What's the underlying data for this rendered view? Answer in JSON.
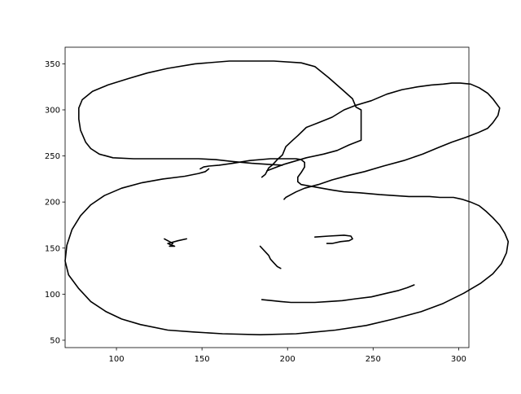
{
  "chart_data": {
    "type": "line",
    "title": "",
    "xlabel": "",
    "ylabel": "",
    "xlim": [
      70,
      306
    ],
    "ylim": [
      42,
      368
    ],
    "grid": false,
    "legend": "none",
    "line_color": "#000000",
    "x_ticks": [
      100,
      150,
      200,
      250,
      300
    ],
    "y_ticks": [
      50,
      100,
      150,
      200,
      250,
      300,
      350
    ],
    "strokes": [
      {
        "name": "left-ear",
        "points": [
          [
            197,
            240
          ],
          [
            188,
            241
          ],
          [
            179,
            242
          ],
          [
            168,
            244
          ],
          [
            158,
            246
          ],
          [
            148,
            247
          ],
          [
            140,
            247
          ],
          [
            127,
            247
          ],
          [
            110,
            247
          ],
          [
            98,
            248
          ],
          [
            90,
            252
          ],
          [
            85,
            258
          ],
          [
            82,
            265
          ],
          [
            79,
            278
          ],
          [
            78,
            290
          ],
          [
            78,
            302
          ],
          [
            80,
            311
          ],
          [
            86,
            320
          ],
          [
            95,
            327
          ],
          [
            107,
            334
          ],
          [
            118,
            340
          ],
          [
            130,
            345
          ],
          [
            146,
            350
          ],
          [
            166,
            353
          ],
          [
            192,
            353
          ],
          [
            208,
            351
          ],
          [
            216,
            347
          ],
          [
            224,
            335
          ],
          [
            232,
            322
          ],
          [
            238,
            312
          ],
          [
            240,
            303
          ],
          [
            243,
            300
          ],
          [
            243,
            290
          ],
          [
            243,
            281
          ],
          [
            243,
            267
          ],
          [
            236,
            262
          ],
          [
            229,
            256
          ],
          [
            221,
            252
          ],
          [
            211,
            248
          ],
          [
            198,
            241
          ],
          [
            188,
            234
          ]
        ]
      },
      {
        "name": "right-ear",
        "points": [
          [
            185,
            227
          ],
          [
            187,
            230
          ],
          [
            189,
            237
          ],
          [
            191,
            240
          ],
          [
            193,
            244
          ],
          [
            194,
            246
          ],
          [
            197,
            251
          ],
          [
            199,
            260
          ],
          [
            203,
            267
          ],
          [
            206,
            272
          ],
          [
            211,
            281
          ],
          [
            218,
            286
          ],
          [
            226,
            292
          ],
          [
            233,
            300
          ],
          [
            240,
            305
          ],
          [
            249,
            310
          ],
          [
            258,
            317
          ],
          [
            267,
            322
          ],
          [
            276,
            325
          ],
          [
            284,
            327
          ],
          [
            291,
            328
          ],
          [
            296,
            329
          ],
          [
            301,
            329
          ],
          [
            307,
            328
          ],
          [
            312,
            324
          ],
          [
            317,
            318
          ],
          [
            320,
            312
          ],
          [
            324,
            302
          ],
          [
            323,
            294
          ],
          [
            320,
            286
          ],
          [
            317,
            280
          ],
          [
            311,
            275
          ],
          [
            304,
            270
          ],
          [
            296,
            265
          ],
          [
            288,
            259
          ],
          [
            279,
            252
          ],
          [
            268,
            245
          ],
          [
            256,
            239
          ],
          [
            245,
            233
          ],
          [
            236,
            229
          ],
          [
            226,
            224
          ],
          [
            218,
            219
          ],
          [
            210,
            215
          ],
          [
            205,
            211
          ],
          [
            202,
            208
          ],
          [
            199,
            205
          ],
          [
            198,
            203
          ]
        ]
      },
      {
        "name": "head",
        "points": [
          [
            149,
            236
          ],
          [
            151,
            238
          ],
          [
            154,
            239
          ],
          [
            160,
            240
          ],
          [
            168,
            242
          ],
          [
            178,
            245
          ],
          [
            190,
            247
          ],
          [
            198,
            247
          ],
          [
            205,
            247
          ],
          [
            208,
            246
          ],
          [
            210,
            243
          ],
          [
            210,
            238
          ],
          [
            208,
            232
          ],
          [
            206,
            227
          ],
          [
            206,
            222
          ],
          [
            208,
            219
          ],
          [
            214,
            217
          ],
          [
            220,
            215
          ],
          [
            226,
            213
          ],
          [
            233,
            211
          ],
          [
            242,
            210
          ],
          [
            254,
            208
          ],
          [
            262,
            207
          ],
          [
            271,
            206
          ],
          [
            277,
            206
          ],
          [
            283,
            206
          ],
          [
            289,
            205
          ],
          [
            297,
            205
          ],
          [
            302,
            203
          ],
          [
            307,
            200
          ],
          [
            312,
            196
          ],
          [
            316,
            190
          ],
          [
            320,
            183
          ],
          [
            324,
            175
          ],
          [
            327,
            166
          ],
          [
            329,
            157
          ],
          [
            328,
            145
          ],
          [
            325,
            133
          ],
          [
            320,
            122
          ],
          [
            313,
            112
          ],
          [
            303,
            101
          ],
          [
            291,
            90
          ],
          [
            278,
            81
          ],
          [
            262,
            73
          ],
          [
            246,
            66
          ],
          [
            228,
            61
          ],
          [
            205,
            57
          ],
          [
            184,
            56
          ],
          [
            162,
            57
          ],
          [
            145,
            59
          ],
          [
            130,
            61
          ],
          [
            114,
            67
          ],
          [
            103,
            73
          ],
          [
            94,
            81
          ],
          [
            85,
            92
          ],
          [
            78,
            106
          ],
          [
            72,
            121
          ],
          [
            70,
            136
          ],
          [
            71,
            153
          ],
          [
            74,
            170
          ],
          [
            79,
            185
          ],
          [
            85,
            197
          ],
          [
            93,
            207
          ],
          [
            103,
            215
          ],
          [
            115,
            221
          ],
          [
            127,
            225
          ],
          [
            140,
            228
          ],
          [
            148,
            231
          ],
          [
            152,
            233
          ],
          [
            154,
            236
          ]
        ]
      },
      {
        "name": "left-eye",
        "points": [
          [
            128,
            160
          ],
          [
            133,
            155
          ],
          [
            131,
            152
          ],
          [
            134,
            152
          ],
          [
            130,
            155
          ],
          [
            136,
            158
          ],
          [
            141,
            160
          ]
        ]
      },
      {
        "name": "right-eye",
        "points": [
          [
            216,
            162
          ],
          [
            224,
            163
          ],
          [
            233,
            164
          ],
          [
            237,
            163
          ],
          [
            238,
            160
          ],
          [
            236,
            158
          ],
          [
            231,
            157
          ],
          [
            226,
            155
          ],
          [
            223,
            155
          ]
        ]
      },
      {
        "name": "nose",
        "points": [
          [
            184,
            152
          ],
          [
            187,
            146
          ],
          [
            189,
            142
          ],
          [
            190,
            138
          ],
          [
            192,
            134
          ],
          [
            194,
            130
          ],
          [
            196,
            128
          ]
        ]
      },
      {
        "name": "mouth",
        "points": [
          [
            185,
            94
          ],
          [
            191,
            93
          ],
          [
            196,
            92
          ],
          [
            202,
            91
          ],
          [
            208,
            91
          ],
          [
            216,
            91
          ],
          [
            224,
            92
          ],
          [
            232,
            93
          ],
          [
            240,
            95
          ],
          [
            249,
            97
          ],
          [
            258,
            101
          ],
          [
            265,
            104
          ],
          [
            270,
            107
          ],
          [
            274,
            110
          ]
        ]
      }
    ]
  }
}
